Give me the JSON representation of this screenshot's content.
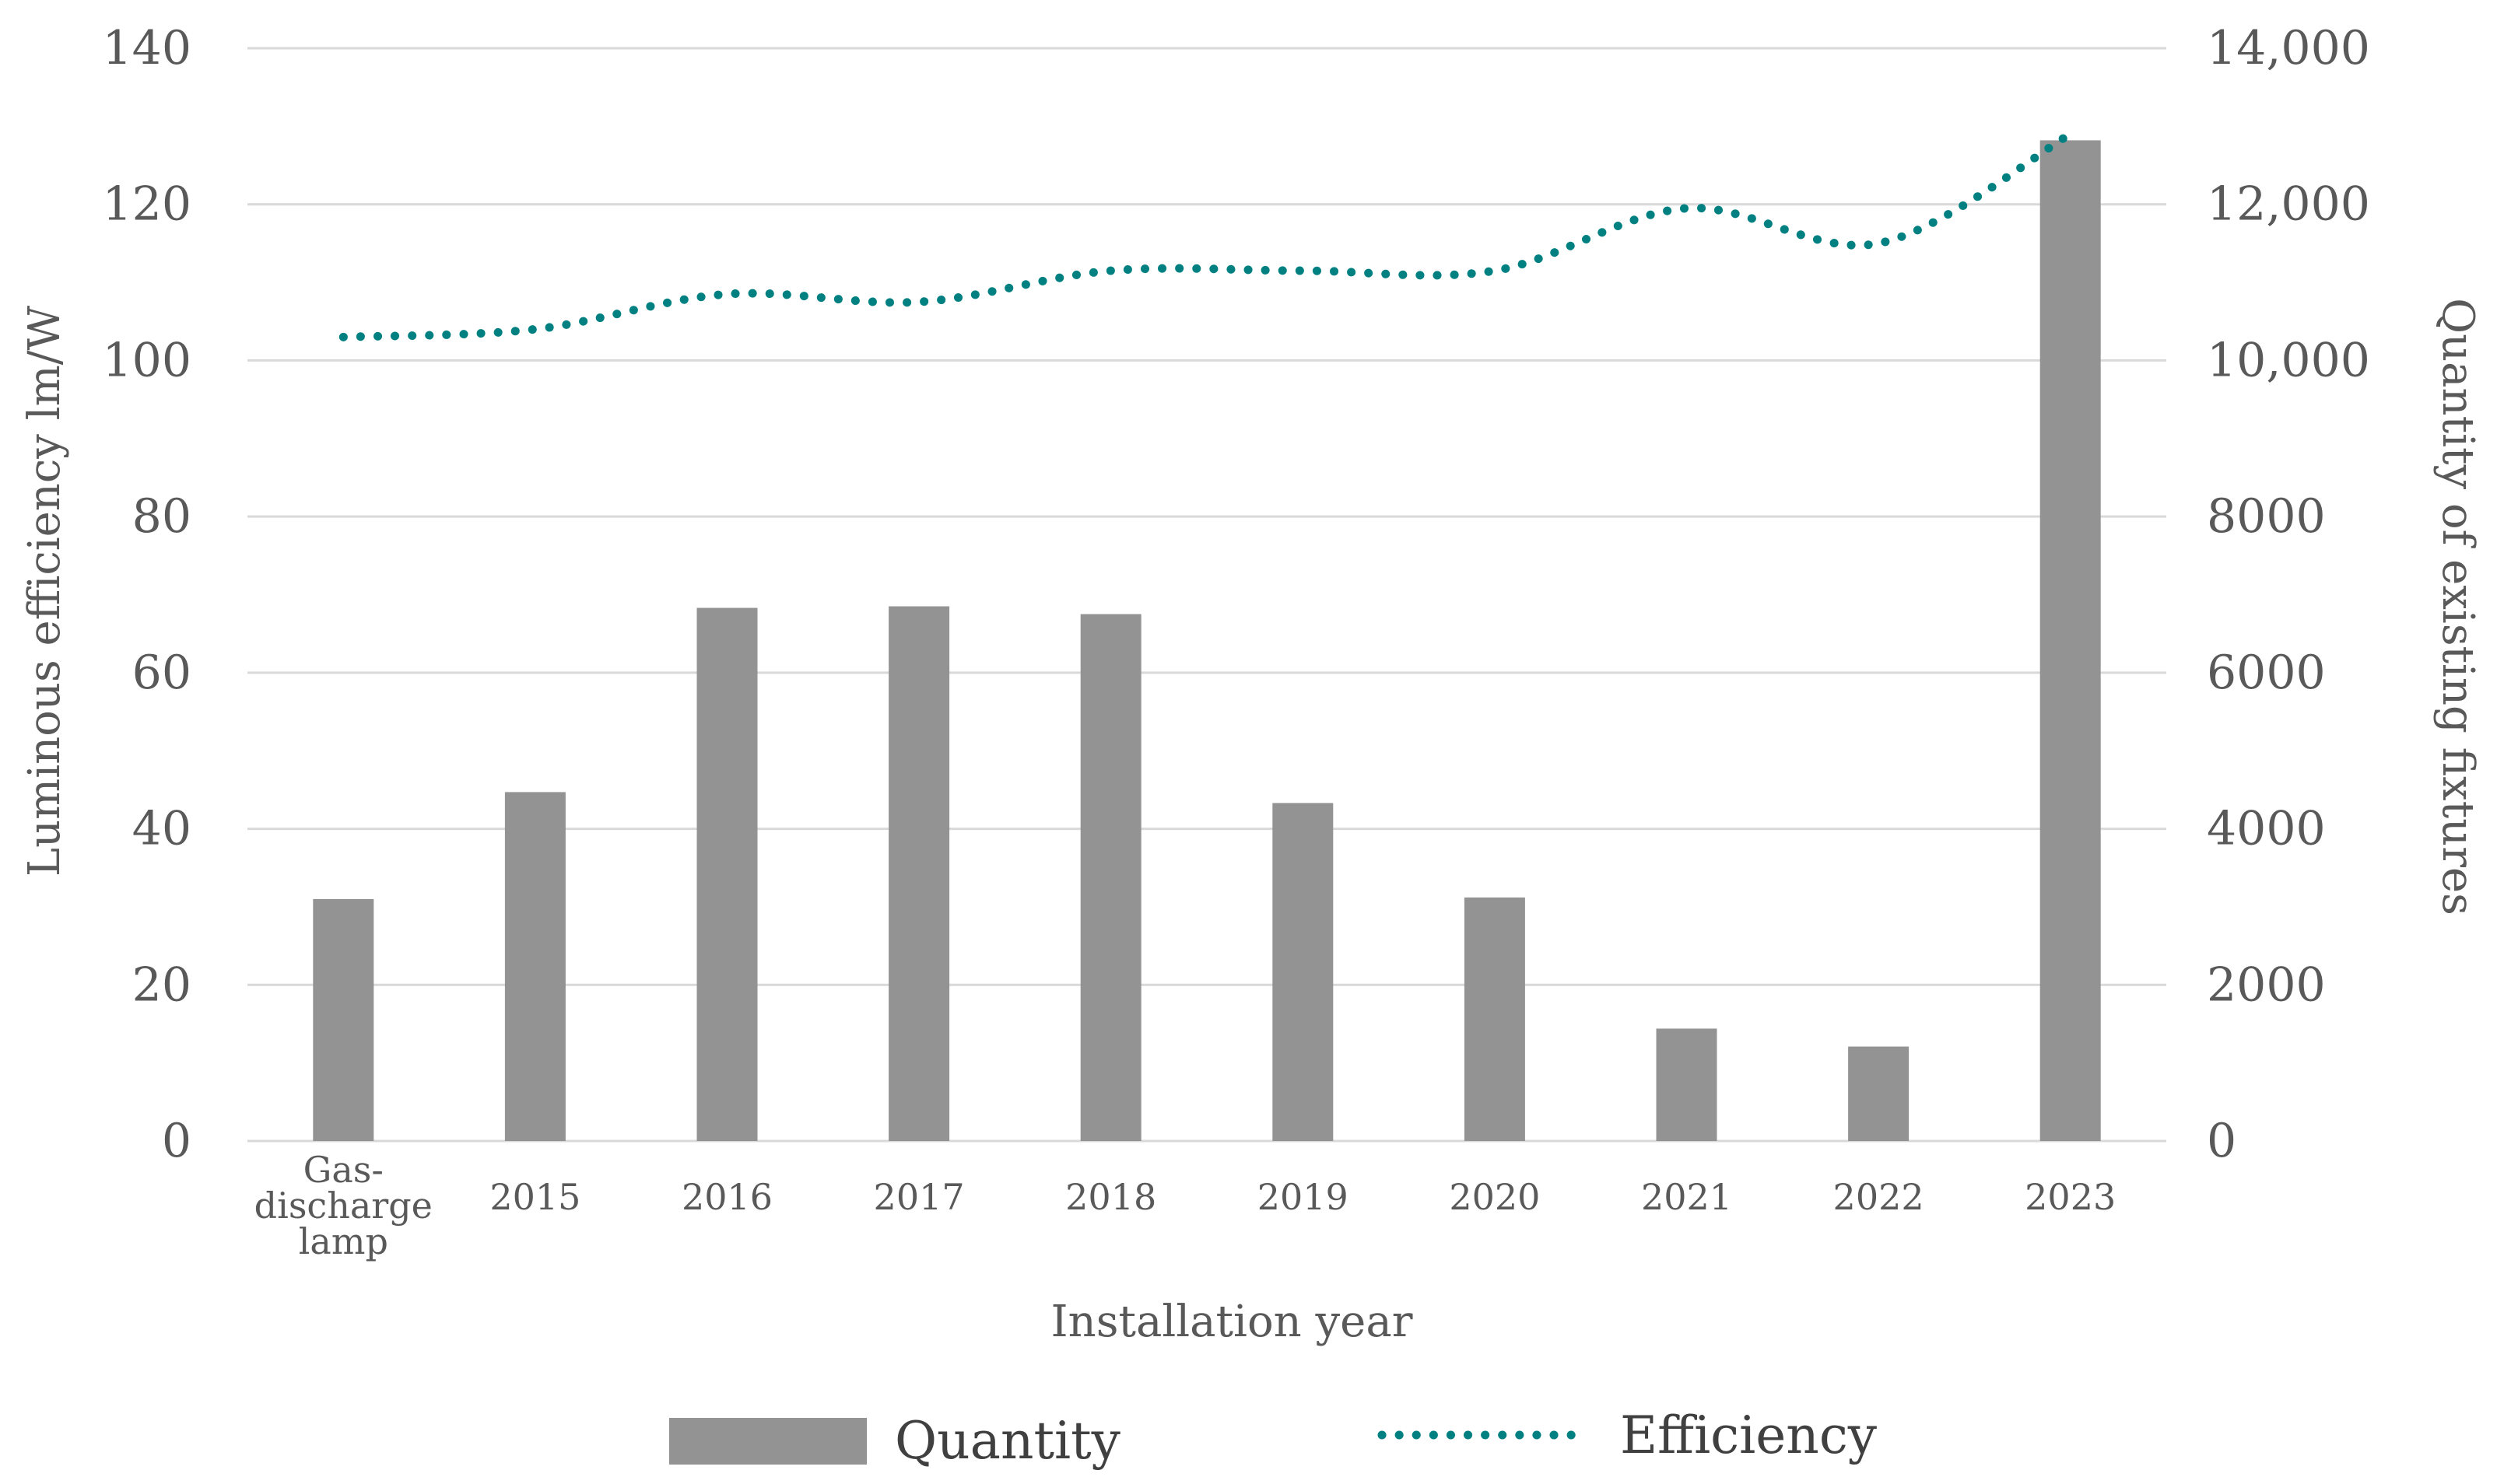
{
  "chart_data": {
    "type": "bar+line",
    "categories": [
      "Gas-discharge lamp",
      "2015",
      "2016",
      "2017",
      "2018",
      "2019",
      "2020",
      "2021",
      "2022",
      "2023"
    ],
    "category_lines": [
      [
        "Gas-",
        "discharge",
        "lamp"
      ],
      [
        "2015"
      ],
      [
        "2016"
      ],
      [
        "2017"
      ],
      [
        "2018"
      ],
      [
        "2019"
      ],
      [
        "2020"
      ],
      [
        "2021"
      ],
      [
        "2022"
      ],
      [
        "2023"
      ]
    ],
    "series": [
      {
        "name": "Quantity",
        "kind": "bar",
        "axis": "right",
        "color": "#939393",
        "values": [
          3100,
          4470,
          6830,
          6850,
          6750,
          4330,
          3120,
          1440,
          1210,
          12820
        ]
      },
      {
        "name": "Efficiency",
        "kind": "line",
        "style": "dotted",
        "axis": "left",
        "color": "#008080",
        "values": [
          103,
          104,
          108.5,
          107.5,
          111.5,
          111.5,
          111.5,
          119.5,
          115,
          129
        ]
      }
    ],
    "left_axis": {
      "title": "Luminous efficiency lm/W",
      "ylim": [
        0,
        140
      ],
      "ticks": [
        0,
        20,
        40,
        60,
        80,
        100,
        120,
        140
      ],
      "tick_labels": [
        "0",
        "20",
        "40",
        "60",
        "80",
        "100",
        "120",
        "140"
      ]
    },
    "right_axis": {
      "title": "Quantity of existing fixtures",
      "ylim": [
        0,
        14000
      ],
      "ticks": [
        0,
        2000,
        4000,
        6000,
        8000,
        10000,
        12000,
        14000
      ],
      "tick_labels": [
        "0",
        "2000",
        "4000",
        "6000",
        "8000",
        "10,000",
        "12,000",
        "14,000"
      ]
    },
    "xlabel": "Installation year",
    "grid": true,
    "legend": {
      "position": "bottom",
      "entries": [
        "Quantity",
        "Efficiency"
      ]
    }
  }
}
